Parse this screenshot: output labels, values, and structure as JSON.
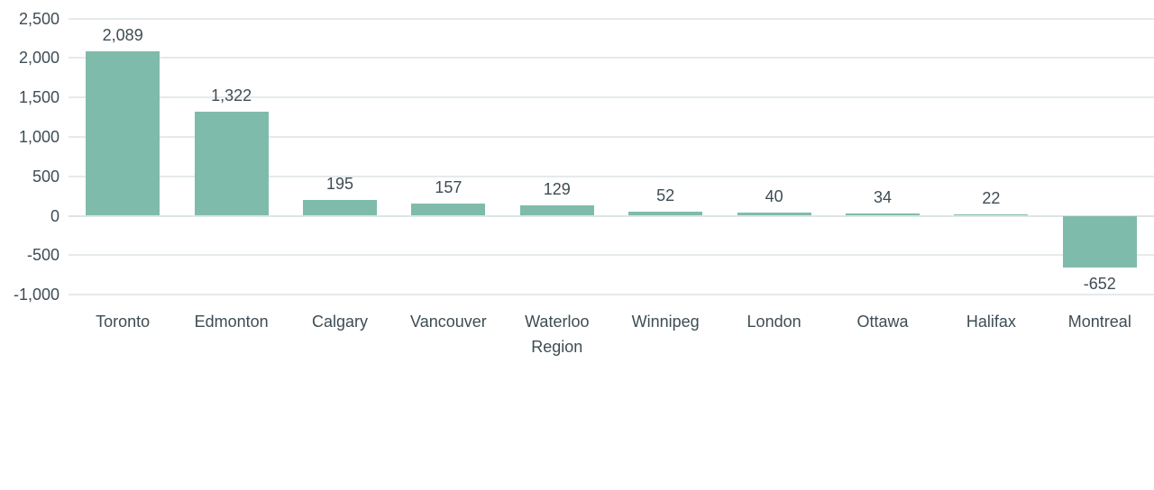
{
  "chart_data": {
    "type": "bar",
    "title": "",
    "xlabel": "",
    "ylabel": "",
    "categories": [
      "Toronto",
      "Edmonton",
      "Calgary",
      "Vancouver",
      "Waterloo Region",
      "Winnipeg",
      "London",
      "Ottawa",
      "Halifax",
      "Montreal"
    ],
    "values": [
      2089,
      1322,
      195,
      157,
      129,
      52,
      40,
      34,
      22,
      -652
    ],
    "value_labels": [
      "2,089",
      "1,322",
      "195",
      "157",
      "129",
      "52",
      "40",
      "34",
      "22",
      "-652"
    ],
    "y_ticks": [
      2500,
      2000,
      1500,
      1000,
      500,
      0,
      -500,
      -1000
    ],
    "y_tick_labels": [
      "2,500",
      "2,000",
      "1,500",
      "1,000",
      "500",
      "0",
      "-500",
      "-1,000"
    ],
    "ylim": [
      -1000,
      2500
    ],
    "grid": "horizontal",
    "legend": "none",
    "colors": {
      "bar_fill": "#7fbbaa",
      "text": "#3e4c54",
      "gridline": "#e5eaeb",
      "zero_line": "#dde4e5",
      "background": "#ffffff"
    }
  }
}
